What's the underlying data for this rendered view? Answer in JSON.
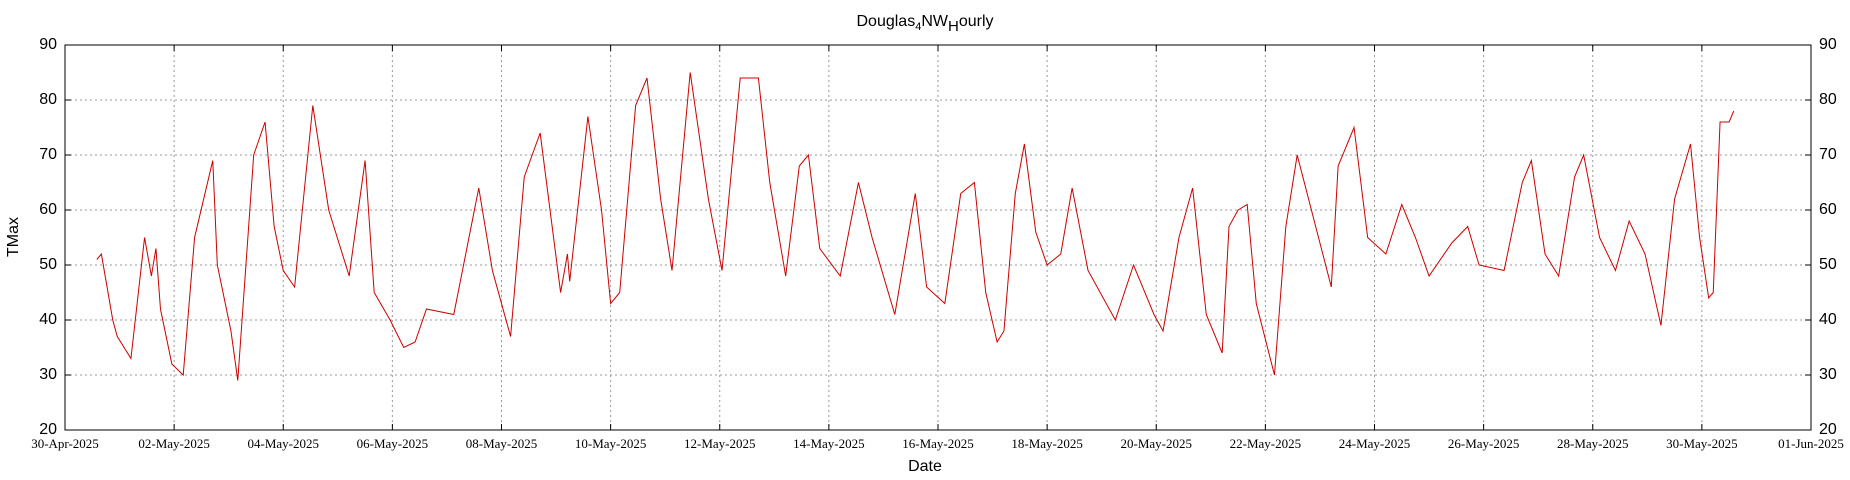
{
  "chart_data": {
    "type": "line",
    "title": [
      "Douglas",
      "4",
      "NW",
      "H",
      "ourly"
    ],
    "xlabel": "Date",
    "ylabel": "TMax",
    "x": [
      "2025-04-30 14:00",
      "2025-04-30 16:00",
      "2025-04-30 21:00",
      "2025-04-30 23:00",
      "2025-05-01 05:00",
      "2025-05-01 11:00",
      "2025-05-01 14:00",
      "2025-05-01 16:00",
      "2025-05-01 18:00",
      "2025-05-01 23:00",
      "2025-05-02 04:00",
      "2025-05-02 09:00",
      "2025-05-02 17:00",
      "2025-05-02 19:00",
      "2025-05-03 01:00",
      "2025-05-03 04:00",
      "2025-05-03 11:00",
      "2025-05-03 16:00",
      "2025-05-03 20:00",
      "2025-05-04 00:00",
      "2025-05-04 05:00",
      "2025-05-04 13:00",
      "2025-05-04 20:00",
      "2025-05-05 05:00",
      "2025-05-05 12:00",
      "2025-05-05 16:00",
      "2025-05-05 23:00",
      "2025-05-06 05:00",
      "2025-05-06 10:00",
      "2025-05-06 15:00",
      "2025-05-07 03:00",
      "2025-05-07 14:00",
      "2025-05-07 20:00",
      "2025-05-08 04:00",
      "2025-05-08 10:00",
      "2025-05-08 17:00",
      "2025-05-09 02:00",
      "2025-05-09 05:00",
      "2025-05-09 06:00",
      "2025-05-09 14:00",
      "2025-05-09 20:00",
      "2025-05-10 00:00",
      "2025-05-10 04:00",
      "2025-05-10 11:00",
      "2025-05-10 16:00",
      "2025-05-10 22:00",
      "2025-05-11 03:00",
      "2025-05-11 11:00",
      "2025-05-11 19:00",
      "2025-05-12 01:00",
      "2025-05-12 09:00",
      "2025-05-12 17:00",
      "2025-05-12 22:00",
      "2025-05-13 05:00",
      "2025-05-13 11:00",
      "2025-05-13 15:00",
      "2025-05-13 20:00",
      "2025-05-14 05:00",
      "2025-05-14 13:00",
      "2025-05-14 19:00",
      "2025-05-15 05:00",
      "2025-05-15 14:00",
      "2025-05-15 19:00",
      "2025-05-16 03:00",
      "2025-05-16 10:00",
      "2025-05-16 16:00",
      "2025-05-16 21:00",
      "2025-05-17 02:00",
      "2025-05-17 05:00",
      "2025-05-17 10:00",
      "2025-05-17 14:00",
      "2025-05-17 19:00",
      "2025-05-18 00:00",
      "2025-05-18 06:00",
      "2025-05-18 11:00",
      "2025-05-18 18:00",
      "2025-05-19 06:00",
      "2025-05-19 14:00",
      "2025-05-19 23:00",
      "2025-05-20 03:00",
      "2025-05-20 10:00",
      "2025-05-20 16:00",
      "2025-05-20 22:00",
      "2025-05-21 05:00",
      "2025-05-21 08:00",
      "2025-05-21 12:00",
      "2025-05-21 16:00",
      "2025-05-21 20:00",
      "2025-05-22 04:00",
      "2025-05-22 09:00",
      "2025-05-22 14:00",
      "2025-05-22 19:00",
      "2025-05-23 05:00",
      "2025-05-23 08:00",
      "2025-05-23 15:00",
      "2025-05-23 21:00",
      "2025-05-24 05:00",
      "2025-05-24 12:00",
      "2025-05-24 18:00",
      "2025-05-25 00:00",
      "2025-05-25 10:00",
      "2025-05-25 17:00",
      "2025-05-25 22:00",
      "2025-05-26 09:00",
      "2025-05-26 17:00",
      "2025-05-26 21:00",
      "2025-05-27 03:00",
      "2025-05-27 09:00",
      "2025-05-27 16:00",
      "2025-05-27 20:00",
      "2025-05-28 03:00",
      "2025-05-28 10:00",
      "2025-05-28 16:00",
      "2025-05-28 23:00",
      "2025-05-29 06:00",
      "2025-05-29 12:00",
      "2025-05-29 19:00",
      "2025-05-29 23:00",
      "2025-05-30 03:00",
      "2025-05-30 05:00",
      "2025-05-30 08:00",
      "2025-05-30 12:00",
      "2025-05-30 14:00"
    ],
    "series": [
      {
        "name": "TMax",
        "color": "#cc0000",
        "values": [
          51,
          52,
          40,
          37,
          33,
          55,
          48,
          53,
          42,
          32,
          30,
          55,
          69,
          50,
          38,
          29,
          70,
          76,
          57,
          49,
          46,
          79,
          60,
          48,
          69,
          45,
          40,
          35,
          36,
          42,
          41,
          64,
          49,
          37,
          66,
          74,
          45,
          52,
          47,
          77,
          60,
          43,
          45,
          79,
          84,
          62,
          49,
          85,
          62,
          49,
          84,
          84,
          65,
          48,
          68,
          70,
          53,
          48,
          65,
          55,
          41,
          63,
          46,
          43,
          63,
          65,
          45,
          36,
          38,
          63,
          72,
          56,
          50,
          52,
          64,
          49,
          40,
          50,
          41,
          38,
          55,
          64,
          41,
          34,
          57,
          60,
          61,
          43,
          30,
          57,
          70,
          62,
          46,
          68,
          75,
          55,
          52,
          61,
          55,
          48,
          54,
          57,
          50,
          49,
          65,
          69,
          52,
          48,
          66,
          70,
          55,
          49,
          58,
          52,
          39,
          62,
          72,
          55,
          44,
          45,
          76,
          76,
          78
        ]
      }
    ],
    "xlim": [
      "2025-04-30",
      "2025-06-01"
    ],
    "xticks": [
      {
        "value": "2025-04-30",
        "label": "30-Apr-2025"
      },
      {
        "value": "2025-05-02",
        "label": "02-May-2025"
      },
      {
        "value": "2025-05-04",
        "label": "04-May-2025"
      },
      {
        "value": "2025-05-06",
        "label": "06-May-2025"
      },
      {
        "value": "2025-05-08",
        "label": "08-May-2025"
      },
      {
        "value": "2025-05-10",
        "label": "10-May-2025"
      },
      {
        "value": "2025-05-12",
        "label": "12-May-2025"
      },
      {
        "value": "2025-05-14",
        "label": "14-May-2025"
      },
      {
        "value": "2025-05-16",
        "label": "16-May-2025"
      },
      {
        "value": "2025-05-18",
        "label": "18-May-2025"
      },
      {
        "value": "2025-05-20",
        "label": "20-May-2025"
      },
      {
        "value": "2025-05-22",
        "label": "22-May-2025"
      },
      {
        "value": "2025-05-24",
        "label": "24-May-2025"
      },
      {
        "value": "2025-05-26",
        "label": "26-May-2025"
      },
      {
        "value": "2025-05-28",
        "label": "28-May-2025"
      },
      {
        "value": "2025-05-30",
        "label": "30-May-2025"
      },
      {
        "value": "2025-06-01",
        "label": "01-Jun-2025"
      }
    ],
    "ylim": [
      20,
      90
    ],
    "yticks": [
      20,
      30,
      40,
      50,
      60,
      70,
      80,
      90
    ],
    "grid": true
  }
}
